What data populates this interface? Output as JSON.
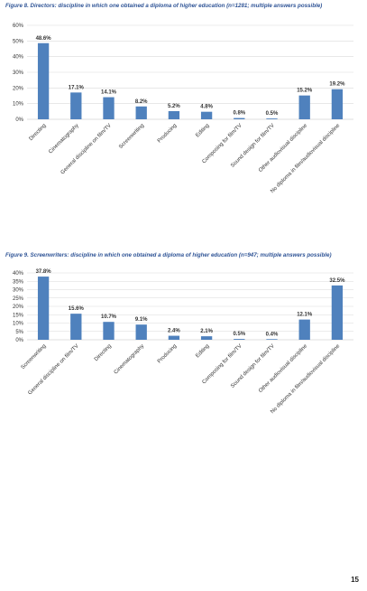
{
  "page": {
    "number": "15"
  },
  "colors": {
    "bar": "#4f81bd",
    "caption": "#2f5496",
    "grid": "#d9d9d9",
    "axis": "#bfbfbf"
  },
  "chart_data": [
    {
      "type": "bar",
      "title": "Figure 8. Directors: discipline in which one obtained a diploma of higher education (n=1281; multiple answers possible)",
      "categories": [
        "Directing",
        "Cinematography",
        "General discipline on film/TV",
        "Screenwriting",
        "Producing",
        "Editing",
        "Composing for film/TV",
        "Sound design for film/TV",
        "Other audiovisual discipline",
        "No diploma in film/audiovisual discipline"
      ],
      "values": [
        48.6,
        17.1,
        14.1,
        8.2,
        5.2,
        4.8,
        0.8,
        0.5,
        15.2,
        19.2
      ],
      "data_labels": [
        "48.6%",
        "17.1%",
        "14.1%",
        "8.2%",
        "5.2%",
        "4.8%",
        "0.8%",
        "0.5%",
        "15.2%",
        "19.2%"
      ],
      "yticks": [
        "0%",
        "10%",
        "20%",
        "30%",
        "40%",
        "50%",
        "60%"
      ],
      "ylim": [
        0,
        60
      ],
      "ystep": 10,
      "grid": true,
      "legend": "none"
    },
    {
      "type": "bar",
      "title": "Figure 9. Screenwriters: discipline in which one obtained a diploma of higher education (n=947; multiple answers possible)",
      "categories": [
        "Screenwriting",
        "General discipline on film/TV",
        "Directing",
        "Cinematography",
        "Producing",
        "Editing",
        "Composing for film/TV",
        "Sound design for film/TV",
        "Other audiovisual discipline",
        "No diploma in film/audiovisual discipline"
      ],
      "values": [
        37.8,
        15.6,
        10.7,
        9.1,
        2.4,
        2.1,
        0.5,
        0.4,
        12.1,
        32.5
      ],
      "data_labels": [
        "37.8%",
        "15.6%",
        "10.7%",
        "9.1%",
        "2.4%",
        "2.1%",
        "0.5%",
        "0.4%",
        "12.1%",
        "32.5%"
      ],
      "yticks": [
        "0%",
        "5%",
        "10%",
        "15%",
        "20%",
        "25%",
        "30%",
        "35%",
        "40%"
      ],
      "ylim": [
        0,
        40
      ],
      "ystep": 5,
      "grid": true,
      "legend": "none"
    }
  ]
}
